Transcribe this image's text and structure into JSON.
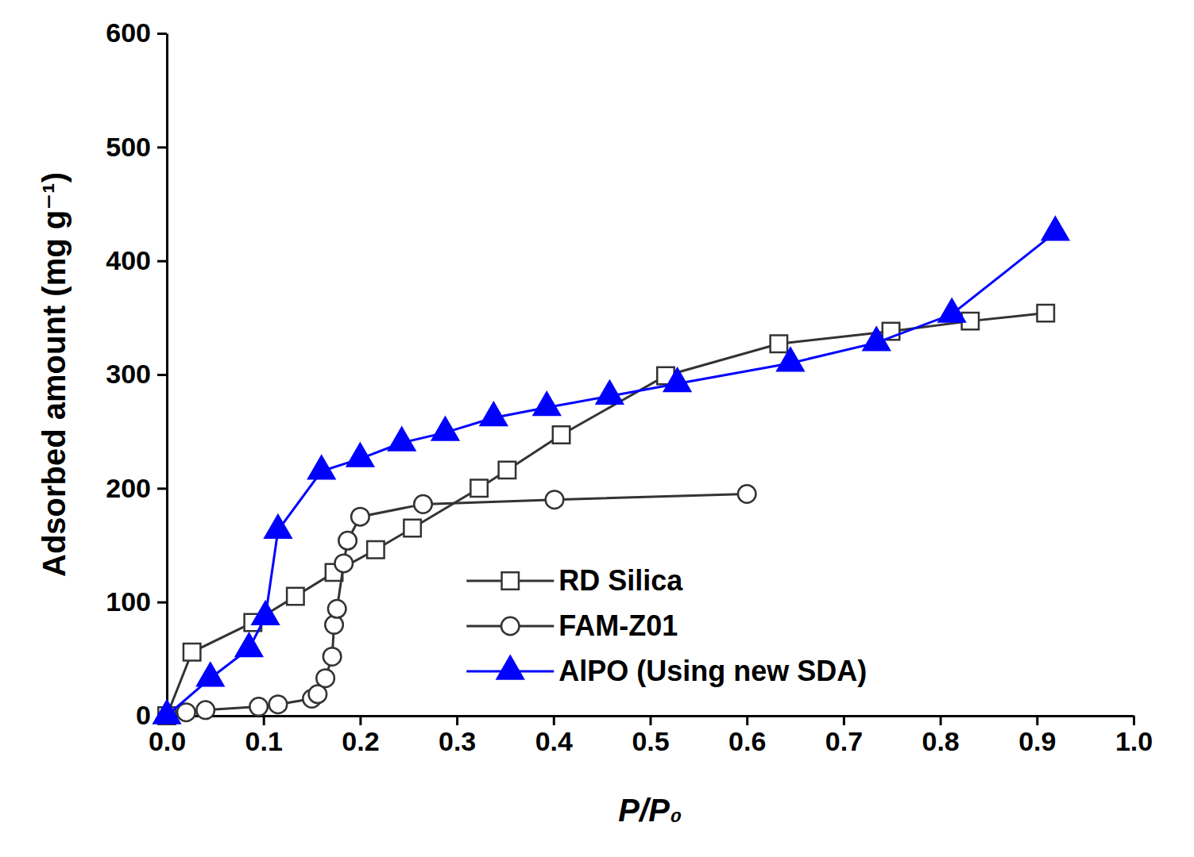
{
  "chart_data": {
    "type": "line",
    "xlabel": "P/P₀",
    "ylabel": "Adsorbed amount (mg g⁻¹)",
    "xlim": [
      0,
      1.0
    ],
    "xticks": [
      {
        "value": 0,
        "label": "0.0"
      },
      0.1,
      0.2,
      0.3,
      0.4,
      0.5,
      0.6,
      0.7,
      0.8,
      0.9,
      {
        "value": 1.0,
        "label": "1.0"
      }
    ],
    "ylim": [
      0,
      600
    ],
    "yticks": [
      0,
      100,
      200,
      300,
      400,
      500,
      600
    ],
    "legend": "lower center",
    "series": [
      {
        "name": "RD Silica",
        "color": "#333333",
        "marker": "open-square",
        "line_style": "solid",
        "x": [
          0,
          0.026,
          0.089,
          0.133,
          0.173,
          0.216,
          0.254,
          0.323,
          0.352,
          0.408,
          0.516,
          0.633,
          0.749,
          0.831,
          0.909
        ],
        "values": [
          0,
          56,
          82,
          105,
          126,
          146,
          165,
          200,
          216,
          247,
          299,
          327,
          338,
          347,
          354
        ]
      },
      {
        "name": "FAM-Z01",
        "color": "#333333",
        "marker": "open-circle",
        "line_style": "solid",
        "x": [
          0.02,
          0.04,
          0.095,
          0.115,
          0.15,
          0.156,
          0.164,
          0.171,
          0.173,
          0.176,
          0.183,
          0.187,
          0.2,
          0.265,
          0.401,
          0.6
        ],
        "values": [
          3,
          5,
          8,
          10,
          15,
          19,
          33,
          52,
          80,
          94,
          134,
          154,
          175,
          186,
          190,
          195
        ]
      },
      {
        "name": "AlPO (Using new SDA)",
        "color": "#0000ff",
        "marker": "triangle",
        "line_style": "solid",
        "x": [
          0,
          0.045,
          0.085,
          0.102,
          0.115,
          0.16,
          0.2,
          0.243,
          0.288,
          0.338,
          0.393,
          0.458,
          0.528,
          0.645,
          0.734,
          0.812,
          0.919
        ],
        "values": [
          0,
          33,
          59,
          87,
          163,
          215,
          226,
          240,
          249,
          262,
          271,
          281,
          292,
          310,
          328,
          353,
          425
        ]
      }
    ]
  }
}
